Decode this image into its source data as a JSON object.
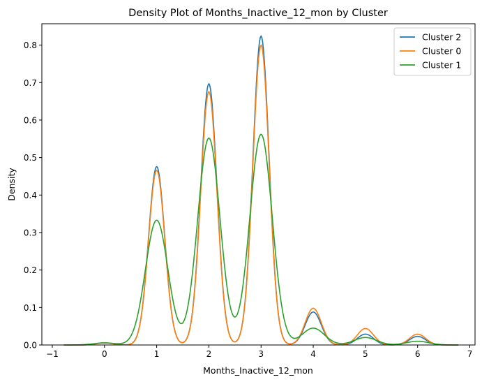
{
  "chart_data": {
    "type": "line",
    "title": "Density Plot of Months_Inactive_12_mon by Cluster",
    "xlabel": "Months_Inactive_12_mon",
    "ylabel": "Density",
    "xlim": [
      -1.2,
      7.1
    ],
    "ylim": [
      0,
      0.857
    ],
    "xticks": [
      -1,
      0,
      1,
      2,
      3,
      4,
      5,
      6,
      7
    ],
    "yticks": [
      0.0,
      0.1,
      0.2,
      0.3,
      0.4,
      0.5,
      0.6,
      0.7,
      0.8
    ],
    "xtick_labels": [
      "−1",
      "0",
      "1",
      "2",
      "3",
      "4",
      "5",
      "6",
      "7"
    ],
    "ytick_labels": [
      "0.0",
      "0.1",
      "0.2",
      "0.3",
      "0.4",
      "0.5",
      "0.6",
      "0.7",
      "0.8"
    ],
    "grid": false,
    "legend_position": "top-right",
    "x_range": [
      -0.78,
      6.78
    ],
    "series": [
      {
        "name": "Cluster 2",
        "color": "#1f77b4",
        "bandwidth": 0.155,
        "peaks": [
          [
            0,
            0.0058
          ],
          [
            1,
            0.476
          ],
          [
            2,
            0.697
          ],
          [
            3,
            0.824
          ],
          [
            4,
            0.088
          ],
          [
            5,
            0.029
          ],
          [
            6,
            0.023
          ]
        ]
      },
      {
        "name": "Cluster 0",
        "color": "#ff7f0e",
        "bandwidth": 0.155,
        "peaks": [
          [
            0,
            0.0058
          ],
          [
            1,
            0.466
          ],
          [
            2,
            0.676
          ],
          [
            3,
            0.8
          ],
          [
            4,
            0.098
          ],
          [
            5,
            0.044
          ],
          [
            6,
            0.029
          ]
        ]
      },
      {
        "name": "Cluster 1",
        "color": "#2ca02c",
        "bandwidth": 0.215,
        "peaks": [
          [
            0,
            0.0055
          ],
          [
            1,
            0.333
          ],
          [
            2,
            0.552
          ],
          [
            3,
            0.562
          ],
          [
            4,
            0.045
          ],
          [
            5,
            0.02
          ],
          [
            6,
            0.01
          ]
        ]
      }
    ]
  }
}
